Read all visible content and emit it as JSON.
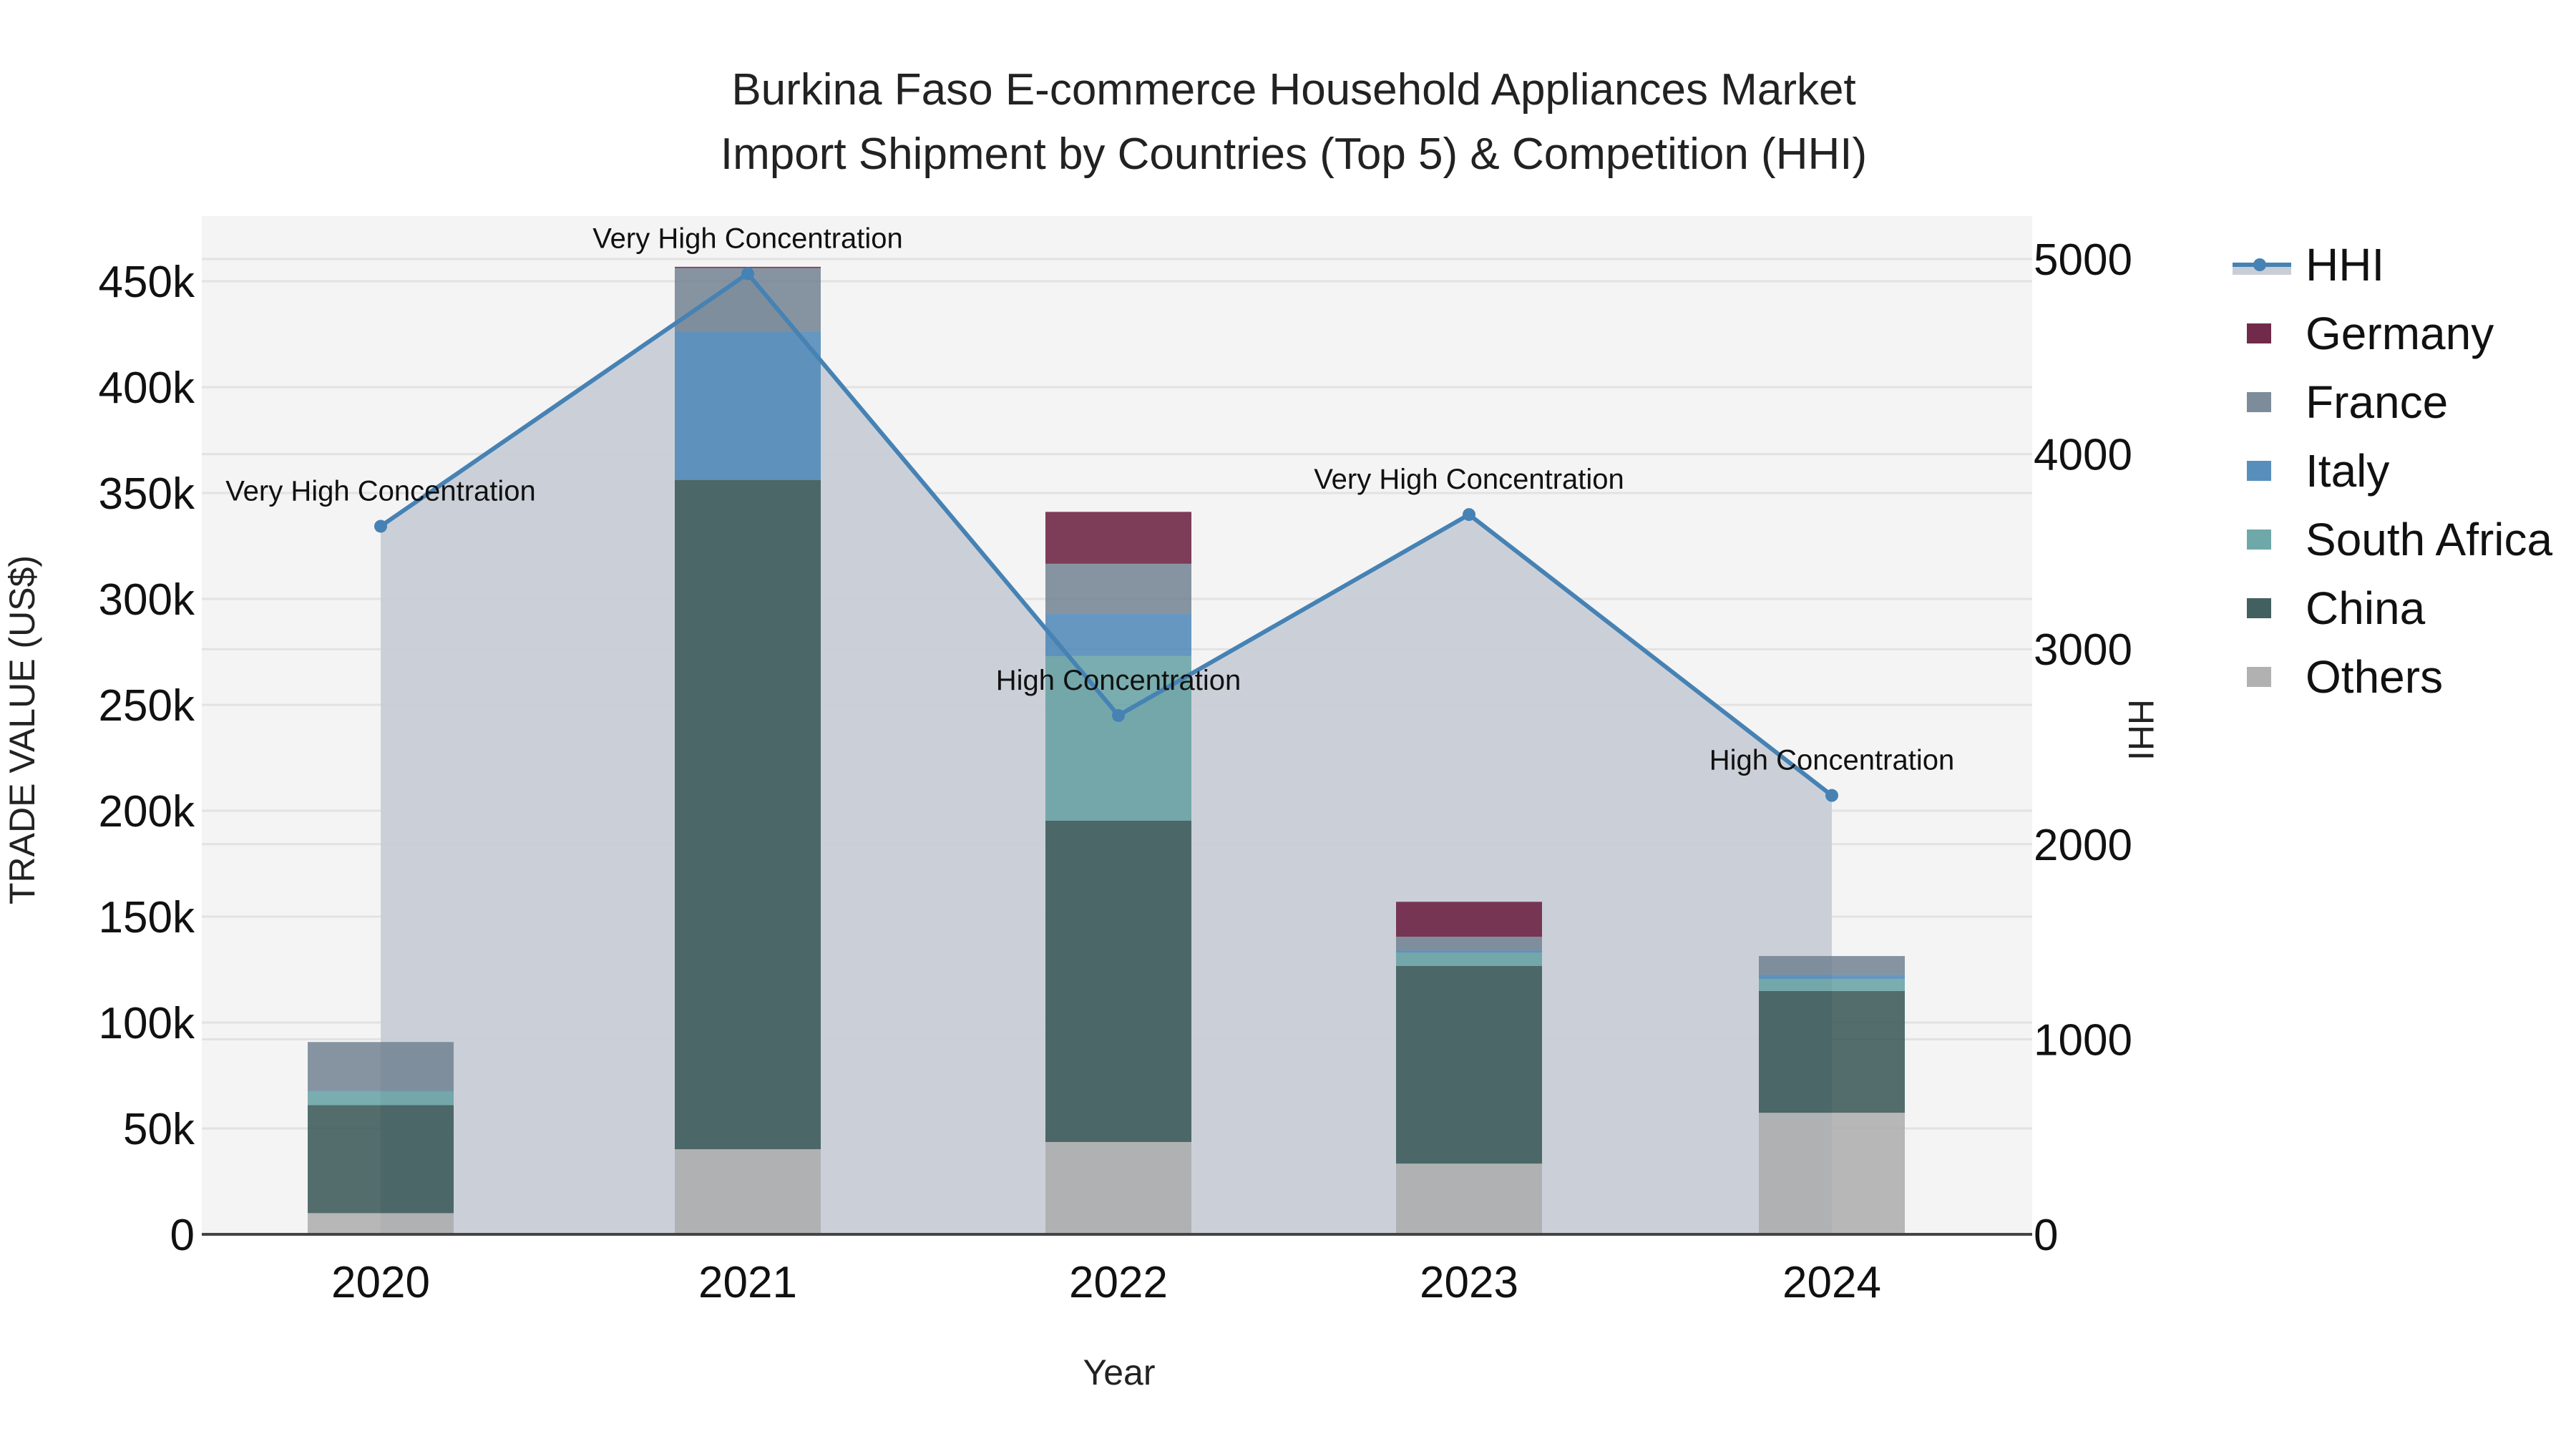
{
  "chart_data": {
    "type": "bar",
    "title": "Burkina Faso E-commerce Household Appliances Market",
    "subtitle": "Import Shipment by Countries (Top 5) & Competition (HHI)",
    "xlabel": "Year",
    "ylabel": "TRADE VALUE (US$)",
    "y2label": "HHI",
    "categories": [
      "2020",
      "2021",
      "2022",
      "2023",
      "2024"
    ],
    "ylim": [
      0,
      480000
    ],
    "y_ticks": [
      0,
      50000,
      100000,
      150000,
      200000,
      250000,
      300000,
      350000,
      400000,
      450000
    ],
    "y_tick_labels": [
      "0",
      "50k",
      "100k",
      "150k",
      "200k",
      "250k",
      "300k",
      "350k",
      "400k",
      "450k"
    ],
    "y2lim": [
      0,
      5250
    ],
    "y2_ticks": [
      0,
      1000,
      2000,
      3000,
      4000,
      5000
    ],
    "y2_tick_labels": [
      "0",
      "1000",
      "2000",
      "3000",
      "4000",
      "5000"
    ],
    "grid": true,
    "legend_position": "right",
    "stack_order": [
      "Others",
      "China",
      "South Africa",
      "Italy",
      "France",
      "Germany"
    ],
    "series": [
      {
        "name": "Germany",
        "color": "#631336",
        "values": [
          0,
          600,
          24500,
          16500,
          0
        ]
      },
      {
        "name": "France",
        "color": "#6e7f8f",
        "values": [
          23000,
          30000,
          23700,
          6500,
          8800
        ]
      },
      {
        "name": "Italy",
        "color": "#4682b4",
        "values": [
          300,
          70000,
          19900,
          1000,
          2000
        ]
      },
      {
        "name": "South Africa",
        "color": "#5f9ea0",
        "values": [
          6500,
          0,
          77700,
          6300,
          5700
        ]
      },
      {
        "name": "China",
        "color": "#2f4f4f",
        "values": [
          51000,
          316000,
          151700,
          93300,
          57500
        ]
      },
      {
        "name": "Others",
        "color": "#a9a9a9",
        "values": [
          10000,
          40200,
          43600,
          33400,
          57400
        ]
      }
    ],
    "hhi": {
      "name": "HHI",
      "type": "line",
      "color": "#4682b4",
      "fill_color": "#c8cdd6",
      "values": [
        3630,
        4925,
        2660,
        3690,
        2250
      ],
      "annotations": [
        "Very High Concentration",
        "Very High Concentration",
        "High Concentration",
        "Very High Concentration",
        "High Concentration"
      ]
    }
  },
  "legend": {
    "items": [
      "HHI",
      "Germany",
      "France",
      "Italy",
      "South Africa",
      "China",
      "Others"
    ]
  }
}
